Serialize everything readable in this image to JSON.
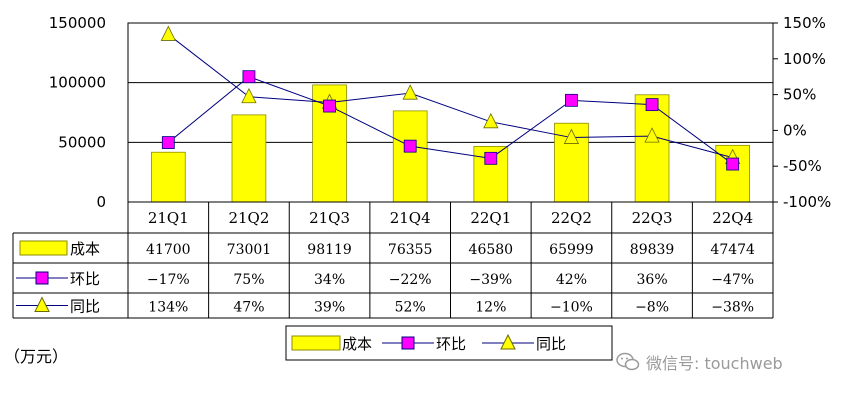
{
  "chart_data": {
    "type": "bar",
    "categories": [
      "21Q1",
      "21Q2",
      "21Q3",
      "21Q4",
      "22Q1",
      "22Q2",
      "22Q3",
      "22Q4"
    ],
    "series": [
      {
        "name": "成本",
        "type": "bar",
        "axis": "left",
        "values": [
          41700,
          73001,
          98119,
          76355,
          46580,
          65999,
          89839,
          47474
        ],
        "labels": [
          "41700",
          "73001",
          "98119",
          "76355",
          "46580",
          "65999",
          "89839",
          "47474"
        ]
      },
      {
        "name": "环比",
        "type": "line",
        "axis": "right",
        "marker": "square",
        "values": [
          -17,
          75,
          34,
          -22,
          -39,
          42,
          36,
          -47
        ],
        "labels": [
          "-17%",
          "75%",
          "34%",
          "-22%",
          "-39%",
          "42%",
          "36%",
          "-47%"
        ]
      },
      {
        "name": "同比",
        "type": "line",
        "axis": "right",
        "marker": "triangle",
        "values": [
          134,
          47,
          39,
          52,
          12,
          -10,
          -8,
          -38
        ],
        "labels": [
          "134%",
          "47%",
          "39%",
          "52%",
          "12%",
          "-10%",
          "-8%",
          "-38%"
        ]
      }
    ],
    "ylim_left": [
      0,
      150000
    ],
    "yticks_left": [
      "0",
      "50000",
      "100000",
      "150000"
    ],
    "ylim_right": [
      -100,
      150
    ],
    "yticks_right": [
      "-100%",
      "-50%",
      "0%",
      "50%",
      "100%",
      "150%"
    ],
    "grid": true,
    "legend": "bottom",
    "data_table": true
  },
  "colors": {
    "bar": "#ffff00",
    "bar_edge": "#8c8c00",
    "square": "#ff00ff",
    "triangle": "#ffff00",
    "line": "#000080"
  },
  "unit_label": "（万元）",
  "watermark": "微信号: touchweb"
}
